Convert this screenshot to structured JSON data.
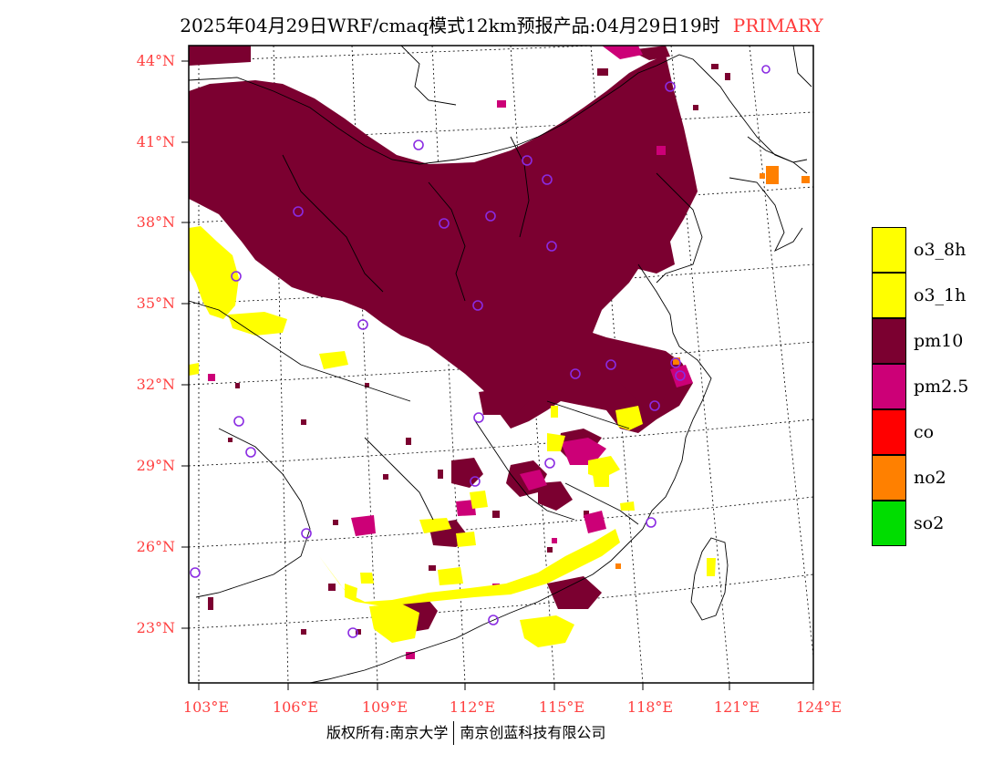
{
  "title": {
    "main": "2025年04月29日WRF/cmaq模式12km预报产品:04月29日19时",
    "tag": "PRIMARY"
  },
  "axes": {
    "lat_ticks": [
      "44°N",
      "41°N",
      "38°N",
      "35°N",
      "32°N",
      "29°N",
      "26°N",
      "23°N"
    ],
    "lon_ticks": [
      "103°E",
      "106°E",
      "109°E",
      "112°E",
      "115°E",
      "118°E",
      "121°E",
      "124°E"
    ]
  },
  "legend": {
    "items": [
      {
        "label": "o3_8h",
        "color": "#ffff00"
      },
      {
        "label": "o3_1h",
        "color": "#ffff00"
      },
      {
        "label": "pm10",
        "color": "#7b0030"
      },
      {
        "label": "pm2.5",
        "color": "#cc0077"
      },
      {
        "label": "co",
        "color": "#ff0000"
      },
      {
        "label": "no2",
        "color": "#ff8000"
      },
      {
        "label": "so2",
        "color": "#00dd00"
      }
    ]
  },
  "footer": {
    "left": "版权所有:南京大学",
    "right": "南京创蓝科技有限公司"
  },
  "colors": {
    "accent": "#ff4040",
    "pm10": "#7b0030",
    "pm25": "#cc0077",
    "o3": "#ffff00",
    "no2": "#ff8000",
    "station_marker": "#8a2be2"
  }
}
